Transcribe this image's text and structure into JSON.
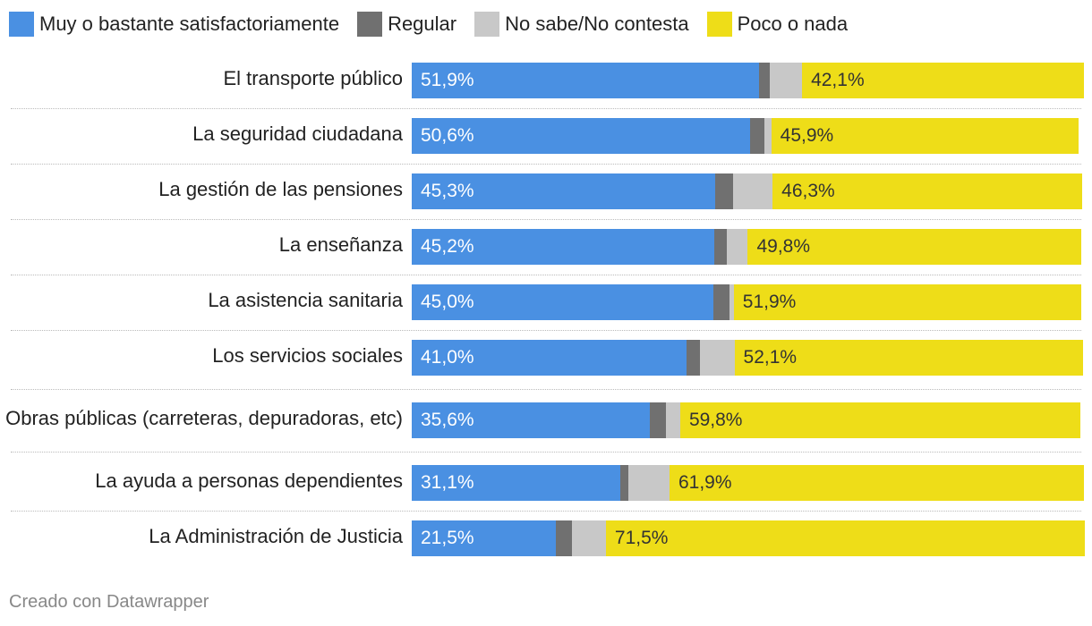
{
  "colors": {
    "satisfactorio": "#4a90e2",
    "regular": "#707070",
    "nsnc": "#c8c8c8",
    "poco": "#eedd18"
  },
  "legend": [
    {
      "label": "Muy o bastante satisfactoriamente",
      "color": "#4a90e2"
    },
    {
      "label": "Regular",
      "color": "#707070"
    },
    {
      "label": "No sabe/No contesta",
      "color": "#c8c8c8"
    },
    {
      "label": "Poco o nada",
      "color": "#eedd18"
    }
  ],
  "credit": "Creado con Datawrapper",
  "chart_data": {
    "type": "bar",
    "orientation": "horizontal",
    "stacked": true,
    "categories": [
      "El transporte público",
      "La seguridad ciudadana",
      "La gestión de las pensiones",
      "La enseñanza",
      "La asistencia sanitaria",
      "Los servicios sociales",
      "Obras públicas (carreteras, depuradoras, etc)",
      "La ayuda a personas dependientes",
      "La Administración de Justicia"
    ],
    "series": [
      {
        "name": "Muy o bastante satisfactoriamente",
        "values": [
          51.9,
          50.6,
          45.3,
          45.2,
          45.0,
          41.0,
          35.6,
          31.1,
          21.5
        ],
        "labels": [
          "51,9%",
          "50,6%",
          "45,3%",
          "45,2%",
          "45,0%",
          "41,0%",
          "35,6%",
          "31,1%",
          "21,5%"
        ]
      },
      {
        "name": "Regular",
        "values": [
          1.6,
          2.1,
          2.7,
          1.8,
          2.5,
          2.1,
          2.4,
          1.3,
          2.4
        ]
      },
      {
        "name": "No sabe/No contesta",
        "values": [
          4.8,
          1.0,
          5.9,
          3.2,
          0.6,
          5.1,
          2.1,
          6.1,
          5.1
        ]
      },
      {
        "name": "Poco o nada",
        "values": [
          42.1,
          45.9,
          46.3,
          49.8,
          51.9,
          52.1,
          59.8,
          61.9,
          71.5
        ],
        "labels": [
          "42,1%",
          "45,9%",
          "46,3%",
          "49,8%",
          "51,9%",
          "52,1%",
          "59,8%",
          "61,9%",
          "71,5%"
        ]
      }
    ],
    "xlim": [
      0,
      100
    ],
    "legend_position": "top-left"
  }
}
